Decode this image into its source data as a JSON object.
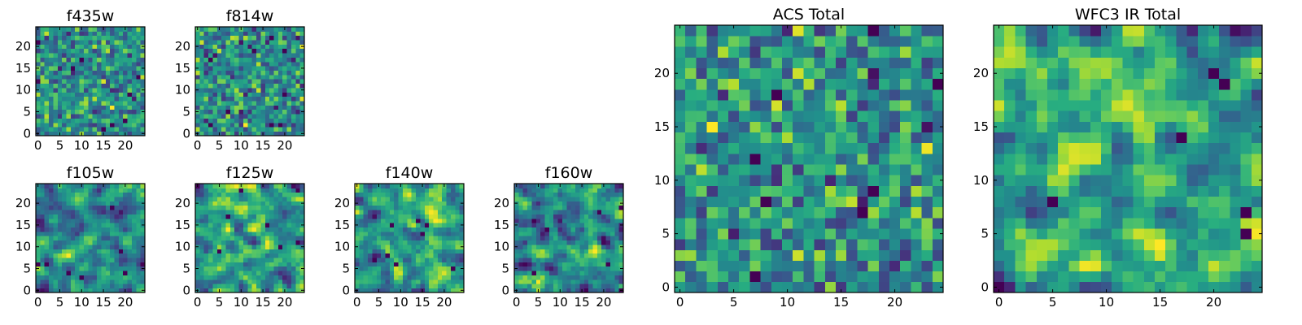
{
  "chart_data": [
    {
      "id": "f435w",
      "type": "heatmap",
      "title": "f435w",
      "size": 25,
      "xlim": [
        -0.5,
        24.5
      ],
      "ylim": [
        -0.5,
        24.5
      ],
      "xticks": [
        0,
        5,
        10,
        15,
        20
      ],
      "yticks": [
        0,
        5,
        10,
        15,
        20
      ],
      "colormap": "viridis",
      "seed": 11,
      "smooth": 0
    },
    {
      "id": "f814w",
      "type": "heatmap",
      "title": "f814w",
      "size": 25,
      "xlim": [
        -0.5,
        24.5
      ],
      "ylim": [
        -0.5,
        24.5
      ],
      "xticks": [
        0,
        5,
        10,
        15,
        20
      ],
      "yticks": [
        0,
        5,
        10,
        15,
        20
      ],
      "colormap": "viridis",
      "seed": 23,
      "smooth": 0
    },
    {
      "id": "f105w",
      "type": "heatmap",
      "title": "f105w",
      "size": 25,
      "xlim": [
        -0.5,
        24.5
      ],
      "ylim": [
        -0.5,
        24.5
      ],
      "xticks": [
        0,
        5,
        10,
        15,
        20
      ],
      "yticks": [
        0,
        5,
        10,
        15,
        20
      ],
      "colormap": "viridis",
      "seed": 37,
      "smooth": 1
    },
    {
      "id": "f125w",
      "type": "heatmap",
      "title": "f125w",
      "size": 25,
      "xlim": [
        -0.5,
        24.5
      ],
      "ylim": [
        -0.5,
        24.5
      ],
      "xticks": [
        0,
        5,
        10,
        15,
        20
      ],
      "yticks": [
        0,
        5,
        10,
        15,
        20
      ],
      "colormap": "viridis",
      "seed": 41,
      "smooth": 1
    },
    {
      "id": "f140w",
      "type": "heatmap",
      "title": "f140w",
      "size": 25,
      "xlim": [
        -0.5,
        24.5
      ],
      "ylim": [
        -0.5,
        24.5
      ],
      "xticks": [
        0,
        5,
        10,
        15,
        20
      ],
      "yticks": [
        0,
        5,
        10,
        15,
        20
      ],
      "colormap": "viridis",
      "seed": 53,
      "smooth": 1
    },
    {
      "id": "f160w",
      "type": "heatmap",
      "title": "f160w",
      "size": 25,
      "xlim": [
        -0.5,
        24.5
      ],
      "ylim": [
        -0.5,
        24.5
      ],
      "xticks": [
        0,
        5,
        10,
        15,
        20
      ],
      "yticks": [
        0,
        5,
        10,
        15,
        20
      ],
      "colormap": "viridis",
      "seed": 67,
      "smooth": 1
    },
    {
      "id": "acs-total",
      "type": "heatmap",
      "title": "ACS Total",
      "size": 25,
      "xlim": [
        -0.5,
        24.5
      ],
      "ylim": [
        -0.5,
        24.5
      ],
      "xticks": [
        0,
        5,
        10,
        15,
        20
      ],
      "yticks": [
        0,
        5,
        10,
        15,
        20
      ],
      "colormap": "viridis",
      "seed": 79,
      "smooth": 0
    },
    {
      "id": "wfc3-ir-total",
      "type": "heatmap",
      "title": "WFC3 IR Total",
      "size": 25,
      "xlim": [
        -0.5,
        24.5
      ],
      "ylim": [
        -0.5,
        24.5
      ],
      "xticks": [
        0,
        5,
        10,
        15,
        20
      ],
      "yticks": [
        0,
        5,
        10,
        15,
        20
      ],
      "colormap": "viridis",
      "seed": 97,
      "smooth": 1
    }
  ],
  "colors": {
    "viridis": [
      "#440154",
      "#472c7a",
      "#3b528b",
      "#2c728e",
      "#21918c",
      "#28ae80",
      "#5ec962",
      "#addc30",
      "#fde725"
    ],
    "axis": "#000000",
    "background": "#ffffff"
  }
}
